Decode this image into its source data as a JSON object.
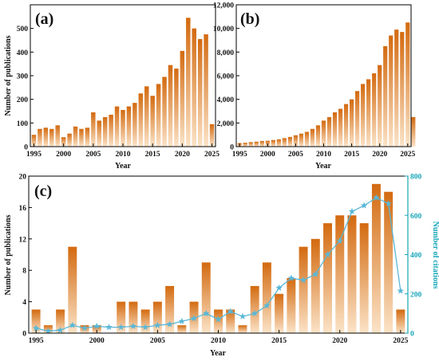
{
  "colors": {
    "bar_top": "#d36a10",
    "bar_bottom": "#fbe3c7",
    "citation_line": "#5ab7d6",
    "citation_axis": "#17a6b8"
  },
  "chart_data": [
    {
      "panel": "(a)",
      "type": "bar",
      "xlabel": "Year",
      "ylabel": "Number of publications",
      "x": [
        1995,
        1996,
        1997,
        1998,
        1999,
        2000,
        2001,
        2002,
        2003,
        2004,
        2005,
        2006,
        2007,
        2008,
        2009,
        2010,
        2011,
        2012,
        2013,
        2014,
        2015,
        2016,
        2017,
        2018,
        2019,
        2020,
        2021,
        2022,
        2023,
        2024,
        2025
      ],
      "values": [
        50,
        75,
        80,
        75,
        90,
        40,
        55,
        85,
        75,
        80,
        145,
        110,
        125,
        135,
        170,
        155,
        170,
        185,
        225,
        255,
        215,
        265,
        295,
        345,
        330,
        405,
        545,
        500,
        455,
        475,
        95
      ],
      "ylim": [
        0,
        600
      ],
      "yticks": [
        0,
        100,
        200,
        300,
        400,
        500
      ],
      "ytick_labels": [
        "0",
        "100",
        "200",
        "300",
        "400",
        "500"
      ],
      "xticks": [
        1995,
        2000,
        2005,
        2010,
        2015,
        2020,
        2025
      ],
      "xtick_labels": [
        "1995",
        "2000",
        "2005",
        "2010",
        "2015",
        "2020",
        "2025"
      ]
    },
    {
      "panel": "(b)",
      "type": "bar",
      "xlabel": "Year",
      "ylabel": "",
      "x": [
        1995,
        1996,
        1997,
        1998,
        1999,
        2000,
        2001,
        2002,
        2003,
        2004,
        2005,
        2006,
        2007,
        2008,
        2009,
        2010,
        2011,
        2012,
        2013,
        2014,
        2015,
        2016,
        2017,
        2018,
        2019,
        2020,
        2021,
        2022,
        2023,
        2024,
        2025
      ],
      "values": [
        300,
        330,
        380,
        420,
        480,
        500,
        560,
        620,
        720,
        820,
        960,
        1100,
        1250,
        1500,
        1800,
        2200,
        2500,
        2900,
        3200,
        3600,
        4000,
        4700,
        5300,
        5700,
        6200,
        6900,
        8500,
        9400,
        9900,
        9700,
        10500
      ],
      "extra_last": 2500,
      "ylim": [
        0,
        12000
      ],
      "yticks": [
        0,
        2000,
        4000,
        6000,
        8000,
        10000,
        12000
      ],
      "ytick_labels": [
        "0",
        "2,000",
        "4,000",
        "6,000",
        "8,000",
        "10,000",
        "12,000"
      ],
      "xticks": [
        1995,
        2000,
        2005,
        2010,
        2015,
        2020,
        2025
      ],
      "xtick_labels": [
        "1995",
        "2000",
        "2005",
        "2010",
        "2015",
        "2020",
        "2025"
      ]
    },
    {
      "panel": "(c)",
      "type": "bar+line",
      "xlabel": "Year",
      "ylabel": "Number of publications",
      "y2label": "Number of citations",
      "x": [
        1995,
        1996,
        1997,
        1998,
        1999,
        2000,
        2001,
        2002,
        2003,
        2004,
        2005,
        2006,
        2007,
        2008,
        2009,
        2010,
        2011,
        2012,
        2013,
        2014,
        2015,
        2016,
        2017,
        2018,
        2019,
        2020,
        2021,
        2022,
        2023,
        2024,
        2025
      ],
      "values": [
        3,
        1,
        3,
        11,
        1,
        1,
        0,
        4,
        4,
        3,
        4,
        6,
        1,
        4,
        9,
        3,
        3,
        1,
        6,
        9,
        5,
        7,
        11,
        12,
        14,
        15,
        15,
        14,
        19,
        18,
        3
      ],
      "citations": [
        25,
        10,
        15,
        40,
        25,
        35,
        30,
        30,
        35,
        30,
        40,
        45,
        60,
        75,
        100,
        70,
        110,
        85,
        100,
        140,
        230,
        280,
        270,
        300,
        400,
        470,
        620,
        650,
        690,
        660,
        215
      ],
      "ylim": [
        0,
        20
      ],
      "y2lim": [
        0,
        800
      ],
      "yticks": [
        0,
        4,
        8,
        12,
        16,
        20
      ],
      "ytick_labels": [
        "0",
        "4",
        "8",
        "12",
        "16",
        "20"
      ],
      "y2ticks": [
        0,
        200,
        400,
        600,
        800
      ],
      "y2tick_labels": [
        "0",
        "200",
        "400",
        "600",
        "800"
      ],
      "xticks": [
        1995,
        2000,
        2005,
        2010,
        2015,
        2020,
        2025
      ],
      "xtick_labels": [
        "1995",
        "2000",
        "2005",
        "2010",
        "2015",
        "2020",
        "2025"
      ]
    }
  ]
}
